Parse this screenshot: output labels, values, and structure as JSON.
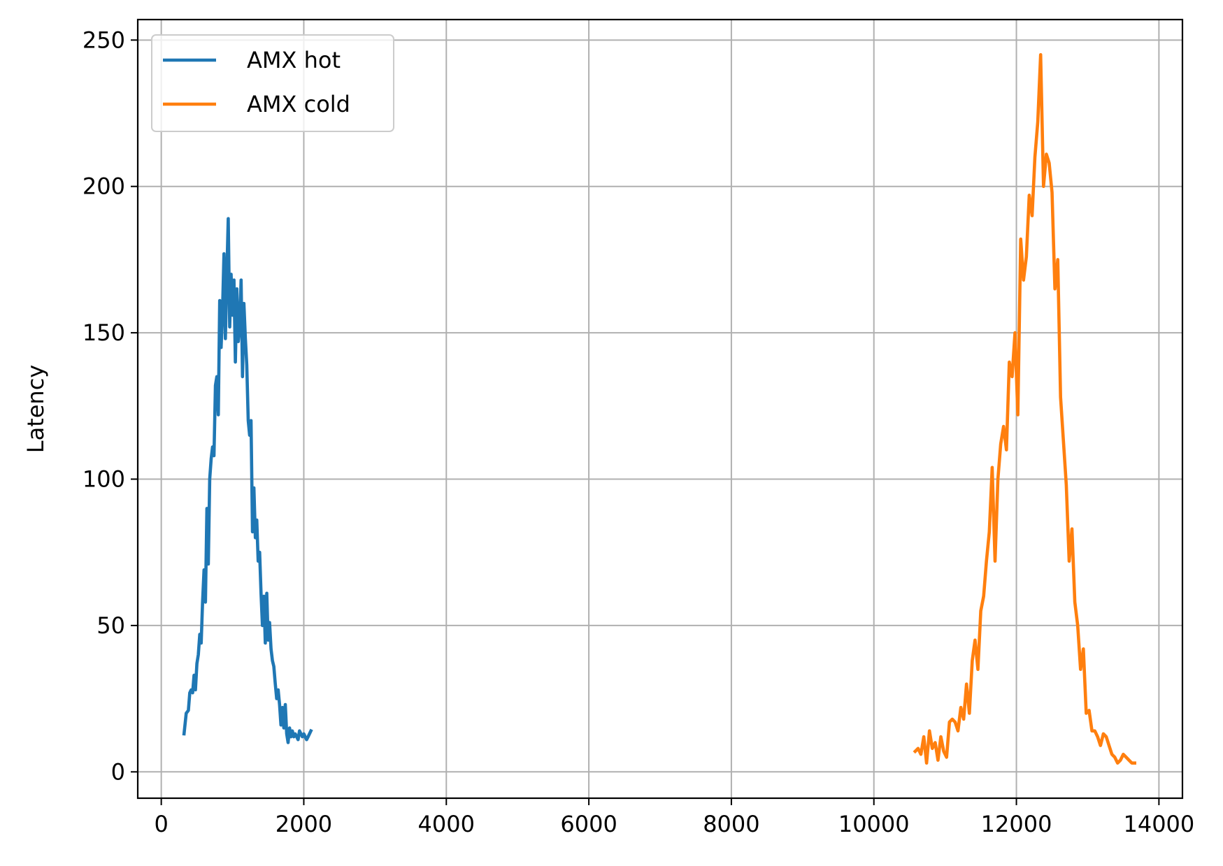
{
  "chart_data": {
    "type": "line",
    "title": "",
    "xlabel": "",
    "ylabel": "Latency",
    "xlim": [
      -330,
      14330
    ],
    "ylim": [
      -9,
      257
    ],
    "xticks": [
      0,
      2000,
      4000,
      6000,
      8000,
      10000,
      12000,
      14000
    ],
    "xtick_labels": [
      "0",
      "2000",
      "4000",
      "6000",
      "8000",
      "10000",
      "12000",
      "14000"
    ],
    "yticks": [
      0,
      50,
      100,
      150,
      200,
      250
    ],
    "ytick_labels": [
      "0",
      "50",
      "100",
      "150",
      "200",
      "250"
    ],
    "grid": true,
    "legend_position": "upper-left",
    "series": [
      {
        "name": "AMX hot",
        "color": "#1f77b4",
        "x": [
          320,
          350,
          380,
          400,
          420,
          440,
          460,
          480,
          500,
          520,
          540,
          560,
          580,
          600,
          620,
          640,
          660,
          680,
          700,
          720,
          740,
          760,
          780,
          800,
          820,
          840,
          860,
          880,
          900,
          920,
          940,
          960,
          980,
          1000,
          1020,
          1040,
          1060,
          1080,
          1100,
          1120,
          1140,
          1160,
          1180,
          1200,
          1220,
          1240,
          1260,
          1280,
          1300,
          1320,
          1340,
          1360,
          1380,
          1400,
          1420,
          1440,
          1460,
          1480,
          1500,
          1520,
          1540,
          1560,
          1580,
          1600,
          1620,
          1640,
          1660,
          1680,
          1700,
          1720,
          1740,
          1760,
          1780,
          1800,
          1820,
          1840,
          1860,
          1880,
          1900,
          1920,
          1940,
          1960,
          1980,
          2000,
          2020,
          2040,
          2060,
          2080,
          2100
        ],
        "y": [
          13,
          20,
          21,
          27,
          28,
          27,
          33,
          28,
          37,
          40,
          47,
          44,
          58,
          69,
          58,
          90,
          71,
          100,
          107,
          111,
          108,
          132,
          135,
          122,
          161,
          145,
          158,
          177,
          148,
          170,
          189,
          152,
          170,
          156,
          168,
          140,
          165,
          147,
          152,
          168,
          135,
          160,
          148,
          139,
          120,
          115,
          120,
          82,
          97,
          80,
          86,
          72,
          75,
          61,
          50,
          60,
          44,
          61,
          45,
          51,
          42,
          38,
          36,
          30,
          25,
          28,
          23,
          16,
          22,
          15,
          23,
          13,
          10,
          15,
          12,
          14,
          12,
          13,
          12,
          11,
          14,
          13,
          12,
          13,
          12,
          11,
          12,
          13,
          14
        ],
        "x_actual_end": 2100
      },
      {
        "name": "AMX cold",
        "color": "#ff7f0e",
        "x": [
          10580,
          10620,
          10660,
          10700,
          10740,
          10780,
          10820,
          10860,
          10900,
          10940,
          10980,
          11020,
          11060,
          11100,
          11140,
          11180,
          11220,
          11260,
          11300,
          11340,
          11380,
          11420,
          11460,
          11500,
          11540,
          11580,
          11620,
          11660,
          11700,
          11740,
          11780,
          11820,
          11860,
          11900,
          11940,
          11980,
          12020,
          12060,
          12100,
          12140,
          12180,
          12220,
          12260,
          12300,
          12340,
          12380,
          12420,
          12460,
          12500,
          12540,
          12580,
          12620,
          12660,
          12700,
          12740,
          12780,
          12820,
          12860,
          12900,
          12940,
          12980,
          13020,
          13060,
          13100,
          13140,
          13180,
          13220,
          13260,
          13300,
          13340,
          13380,
          13420,
          13460,
          13500,
          13540,
          13580,
          13620,
          13660
        ],
        "y": [
          7,
          8,
          6,
          12,
          3,
          14,
          8,
          10,
          4,
          12,
          7,
          5,
          17,
          18,
          17,
          14,
          22,
          18,
          30,
          20,
          38,
          45,
          35,
          55,
          60,
          72,
          82,
          104,
          72,
          100,
          112,
          118,
          110,
          140,
          135,
          150,
          122,
          182,
          168,
          176,
          197,
          190,
          210,
          222,
          245,
          200,
          211,
          208,
          198,
          165,
          175,
          128,
          113,
          98,
          72,
          83,
          58,
          50,
          35,
          42,
          20,
          21,
          14,
          14,
          12,
          9,
          13,
          12,
          9,
          6,
          5,
          3,
          4,
          6,
          5,
          4,
          3,
          3
        ]
      }
    ]
  }
}
